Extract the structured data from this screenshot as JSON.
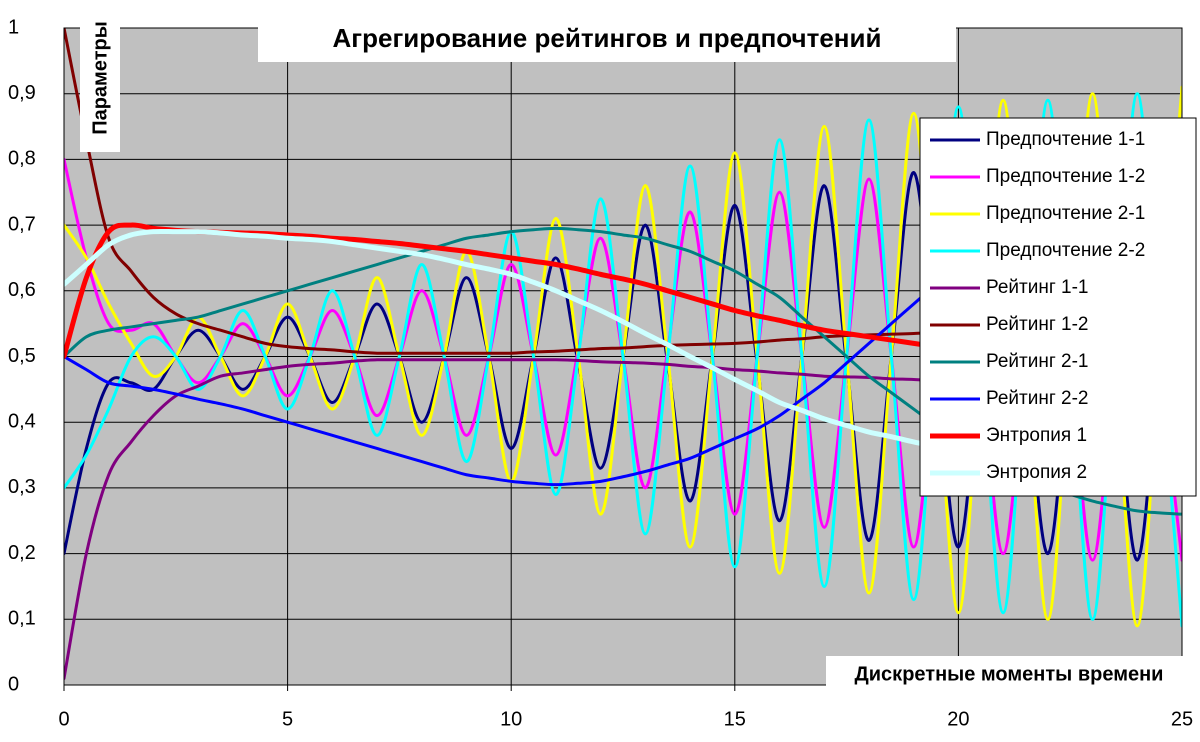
{
  "chart_data": {
    "type": "line",
    "title": "Агрегирование рейтингов и предпочтений",
    "ylabel": "Параметры",
    "xlabel": "Дискретные моменты времени",
    "x": [
      0,
      0.5,
      1,
      1.5,
      2,
      2.5,
      3,
      3.5,
      4,
      4.5,
      5,
      5.5,
      6,
      6.5,
      7,
      7.5,
      8,
      8.5,
      9,
      9.5,
      10,
      10.5,
      11,
      11.5,
      12,
      12.5,
      13,
      13.5,
      14,
      14.5,
      15,
      15.5,
      16,
      16.5,
      17,
      17.5,
      18,
      18.5,
      19,
      19.5,
      20,
      20.5,
      21,
      21.5,
      22,
      22.5,
      23,
      23.5,
      24,
      24.5,
      25
    ],
    "xlim": [
      0,
      25
    ],
    "xticks": [
      0,
      5,
      10,
      15,
      20,
      25
    ],
    "ylim": [
      0,
      1
    ],
    "yticks": [
      0,
      {
        "value": 0.1,
        "label": "0,1"
      },
      {
        "value": 0.2,
        "label": "0,2"
      },
      {
        "value": 0.3,
        "label": "0,3"
      },
      {
        "value": 0.4,
        "label": "0,4"
      },
      {
        "value": 0.5,
        "label": "0,5"
      },
      {
        "value": 0.6,
        "label": "0,6"
      },
      {
        "value": 0.7,
        "label": "0,7"
      },
      {
        "value": 0.8,
        "label": "0,8"
      },
      {
        "value": 0.9,
        "label": "0,9"
      },
      1
    ],
    "grid": true,
    "legend": "right",
    "series": [
      {
        "name": "Предпочтение 1-1",
        "color": "#000080",
        "line_width": 3,
        "values": [
          0.2,
          0.36,
          0.46,
          0.46,
          0.45,
          0.5,
          0.54,
          0.5,
          0.45,
          0.5,
          0.56,
          0.5,
          0.43,
          0.5,
          0.58,
          0.5,
          0.4,
          0.5,
          0.62,
          0.5,
          0.36,
          0.5,
          0.65,
          0.49,
          0.33,
          0.5,
          0.7,
          0.49,
          0.28,
          0.5,
          0.73,
          0.49,
          0.25,
          0.5,
          0.76,
          0.49,
          0.22,
          0.5,
          0.78,
          0.49,
          0.21,
          0.5,
          0.79,
          0.49,
          0.2,
          0.5,
          0.8,
          0.49,
          0.19,
          0.5,
          0.8
        ]
      },
      {
        "name": "Предпочтение 1-2",
        "color": "#ff00ff",
        "line_width": 3,
        "values": [
          0.8,
          0.65,
          0.55,
          0.54,
          0.55,
          0.5,
          0.46,
          0.5,
          0.55,
          0.5,
          0.44,
          0.5,
          0.57,
          0.5,
          0.41,
          0.5,
          0.6,
          0.5,
          0.38,
          0.5,
          0.64,
          0.5,
          0.35,
          0.51,
          0.68,
          0.5,
          0.3,
          0.51,
          0.72,
          0.5,
          0.26,
          0.5,
          0.75,
          0.5,
          0.24,
          0.5,
          0.77,
          0.5,
          0.21,
          0.5,
          0.78,
          0.49,
          0.2,
          0.49,
          0.79,
          0.49,
          0.19,
          0.49,
          0.79,
          0.49,
          0.19
        ]
      },
      {
        "name": "Предпочтение 2-1",
        "color": "#ffff00",
        "line_width": 3,
        "values": [
          0.7,
          0.65,
          0.58,
          0.52,
          0.47,
          0.5,
          0.56,
          0.5,
          0.44,
          0.5,
          0.58,
          0.5,
          0.42,
          0.5,
          0.62,
          0.5,
          0.38,
          0.5,
          0.66,
          0.5,
          0.31,
          0.5,
          0.71,
          0.5,
          0.26,
          0.5,
          0.76,
          0.5,
          0.21,
          0.5,
          0.81,
          0.5,
          0.17,
          0.5,
          0.85,
          0.5,
          0.14,
          0.5,
          0.87,
          0.5,
          0.11,
          0.5,
          0.89,
          0.5,
          0.1,
          0.5,
          0.9,
          0.5,
          0.09,
          0.5,
          0.91
        ]
      },
      {
        "name": "Предпочтение 2-2",
        "color": "#00ffff",
        "line_width": 3,
        "values": [
          0.3,
          0.35,
          0.42,
          0.5,
          0.53,
          0.5,
          0.45,
          0.5,
          0.57,
          0.5,
          0.42,
          0.5,
          0.6,
          0.5,
          0.38,
          0.5,
          0.64,
          0.5,
          0.34,
          0.5,
          0.69,
          0.5,
          0.29,
          0.5,
          0.74,
          0.5,
          0.23,
          0.5,
          0.79,
          0.5,
          0.18,
          0.5,
          0.83,
          0.5,
          0.15,
          0.5,
          0.86,
          0.5,
          0.13,
          0.5,
          0.88,
          0.5,
          0.11,
          0.5,
          0.89,
          0.5,
          0.1,
          0.5,
          0.9,
          0.5,
          0.09
        ]
      },
      {
        "name": "Рейтинг 1-1",
        "color": "#800080",
        "line_width": 3,
        "values": [
          0.01,
          0.2,
          0.32,
          0.37,
          0.41,
          0.44,
          0.455,
          0.47,
          0.475,
          0.48,
          0.485,
          0.488,
          0.49,
          0.493,
          0.495,
          0.495,
          0.495,
          0.495,
          0.495,
          0.495,
          0.495,
          0.495,
          0.495,
          0.494,
          0.492,
          0.491,
          0.49,
          0.488,
          0.485,
          0.483,
          0.48,
          0.478,
          0.475,
          0.473,
          0.47,
          0.469,
          0.468,
          0.466,
          0.465,
          0.463,
          0.462,
          0.461,
          0.46,
          0.459,
          0.458,
          0.456,
          0.455,
          0.454,
          0.452,
          0.451,
          0.45
        ]
      },
      {
        "name": "Рейтинг 1-2",
        "color": "#800000",
        "line_width": 3,
        "values": [
          1,
          0.83,
          0.68,
          0.63,
          0.59,
          0.565,
          0.55,
          0.54,
          0.53,
          0.52,
          0.515,
          0.512,
          0.51,
          0.507,
          0.505,
          0.505,
          0.505,
          0.505,
          0.505,
          0.505,
          0.505,
          0.507,
          0.508,
          0.51,
          0.512,
          0.513,
          0.515,
          0.517,
          0.518,
          0.519,
          0.52,
          0.522,
          0.525,
          0.527,
          0.53,
          0.532,
          0.533,
          0.534,
          0.535,
          0.537,
          0.538,
          0.539,
          0.54,
          0.541,
          0.543,
          0.544,
          0.545,
          0.546,
          0.548,
          0.549,
          0.55
        ]
      },
      {
        "name": "Рейтинг 2-1",
        "color": "#008080",
        "line_width": 3,
        "values": [
          0.5,
          0.53,
          0.54,
          0.545,
          0.55,
          0.555,
          0.56,
          0.57,
          0.58,
          0.59,
          0.6,
          0.61,
          0.62,
          0.63,
          0.64,
          0.65,
          0.66,
          0.67,
          0.68,
          0.685,
          0.69,
          0.693,
          0.695,
          0.693,
          0.69,
          0.685,
          0.68,
          0.67,
          0.66,
          0.645,
          0.63,
          0.61,
          0.59,
          0.56,
          0.53,
          0.5,
          0.47,
          0.445,
          0.42,
          0.395,
          0.37,
          0.35,
          0.33,
          0.315,
          0.3,
          0.29,
          0.28,
          0.272,
          0.265,
          0.262,
          0.26
        ]
      },
      {
        "name": "Рейтинг 2-2",
        "color": "#0000ff",
        "line_width": 3,
        "values": [
          0.5,
          0.48,
          0.46,
          0.455,
          0.45,
          0.443,
          0.435,
          0.428,
          0.42,
          0.41,
          0.4,
          0.39,
          0.38,
          0.37,
          0.36,
          0.35,
          0.34,
          0.33,
          0.32,
          0.315,
          0.31,
          0.307,
          0.305,
          0.307,
          0.31,
          0.317,
          0.325,
          0.335,
          0.345,
          0.36,
          0.375,
          0.39,
          0.41,
          0.435,
          0.46,
          0.49,
          0.52,
          0.55,
          0.58,
          0.61,
          0.64,
          0.665,
          0.69,
          0.71,
          0.73,
          0.745,
          0.76,
          0.77,
          0.78,
          0.785,
          0.79
        ]
      },
      {
        "name": "Энтропия 1",
        "color": "#ff0000",
        "line_width": 5,
        "values": [
          0.5,
          0.62,
          0.69,
          0.7,
          0.695,
          0.692,
          0.69,
          0.689,
          0.688,
          0.687,
          0.685,
          0.683,
          0.68,
          0.678,
          0.675,
          0.672,
          0.668,
          0.664,
          0.66,
          0.655,
          0.65,
          0.645,
          0.64,
          0.633,
          0.625,
          0.618,
          0.61,
          0.6,
          0.59,
          0.58,
          0.57,
          0.562,
          0.555,
          0.547,
          0.54,
          0.535,
          0.53,
          0.525,
          0.52,
          0.515,
          0.51,
          0.507,
          0.505,
          0.502,
          0.5,
          0.5,
          0.5,
          0.497,
          0.495,
          0.492,
          0.49
        ]
      },
      {
        "name": "Энтропия 2",
        "color": "#ccffff",
        "line_width": 5,
        "values": [
          0.61,
          0.64,
          0.67,
          0.685,
          0.69,
          0.69,
          0.69,
          0.688,
          0.685,
          0.683,
          0.68,
          0.678,
          0.675,
          0.67,
          0.665,
          0.66,
          0.655,
          0.648,
          0.64,
          0.633,
          0.625,
          0.613,
          0.6,
          0.585,
          0.57,
          0.553,
          0.535,
          0.518,
          0.5,
          0.483,
          0.465,
          0.448,
          0.43,
          0.418,
          0.405,
          0.395,
          0.385,
          0.378,
          0.37,
          0.363,
          0.355,
          0.35,
          0.345,
          0.34,
          0.335,
          0.333,
          0.33,
          0.328,
          0.325,
          0.323,
          0.32
        ]
      }
    ]
  }
}
